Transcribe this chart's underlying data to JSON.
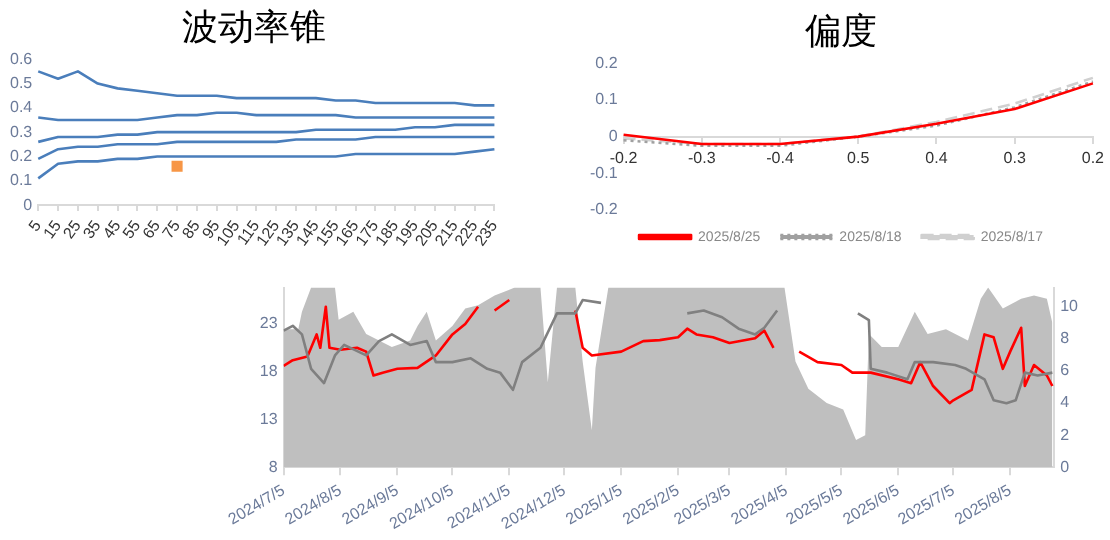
{
  "chart_data": [
    {
      "type": "line",
      "title": "波动率锥",
      "categories": [
        "5",
        "15",
        "25",
        "35",
        "45",
        "55",
        "65",
        "75",
        "85",
        "95",
        "105",
        "115",
        "125",
        "135",
        "145",
        "155",
        "165",
        "175",
        "185",
        "195",
        "205",
        "215",
        "225",
        "235"
      ],
      "series": [
        {
          "color": "#4a7ebb",
          "values": [
            0.55,
            0.52,
            0.55,
            0.5,
            0.48,
            0.47,
            0.46,
            0.45,
            0.45,
            0.45,
            0.44,
            0.44,
            0.44,
            0.44,
            0.44,
            0.43,
            0.43,
            0.42,
            0.42,
            0.42,
            0.42,
            0.42,
            0.41,
            0.41
          ]
        },
        {
          "color": "#4a7ebb",
          "values": [
            0.36,
            0.35,
            0.35,
            0.35,
            0.35,
            0.35,
            0.36,
            0.37,
            0.37,
            0.38,
            0.38,
            0.37,
            0.37,
            0.37,
            0.37,
            0.37,
            0.36,
            0.36,
            0.36,
            0.36,
            0.36,
            0.36,
            0.36,
            0.36
          ]
        },
        {
          "color": "#4a7ebb",
          "values": [
            0.26,
            0.28,
            0.28,
            0.28,
            0.29,
            0.29,
            0.3,
            0.3,
            0.3,
            0.3,
            0.3,
            0.3,
            0.3,
            0.3,
            0.31,
            0.31,
            0.31,
            0.31,
            0.31,
            0.32,
            0.32,
            0.33,
            0.33,
            0.33
          ]
        },
        {
          "color": "#4a7ebb",
          "values": [
            0.19,
            0.23,
            0.24,
            0.24,
            0.25,
            0.25,
            0.25,
            0.26,
            0.26,
            0.26,
            0.26,
            0.26,
            0.26,
            0.27,
            0.27,
            0.27,
            0.27,
            0.28,
            0.28,
            0.28,
            0.28,
            0.28,
            0.28,
            0.28
          ]
        },
        {
          "color": "#4a7ebb",
          "values": [
            0.11,
            0.17,
            0.18,
            0.18,
            0.19,
            0.19,
            0.2,
            0.2,
            0.2,
            0.2,
            0.2,
            0.2,
            0.2,
            0.2,
            0.2,
            0.2,
            0.21,
            0.21,
            0.21,
            0.21,
            0.21,
            0.21,
            0.22,
            0.23
          ]
        },
        {
          "type": "scatter",
          "marker": "square",
          "color": "#f79646",
          "x": [
            "75"
          ],
          "values": [
            0.16
          ]
        }
      ],
      "ylim": [
        0,
        0.6
      ],
      "yticks": [
        0,
        0.1,
        0.2,
        0.3,
        0.4,
        0.5,
        0.6
      ],
      "legend": false,
      "marker": "none"
    },
    {
      "type": "line",
      "title": "偏度",
      "categories": [
        "-0.2",
        "-0.3",
        "-0.4",
        "0.5",
        "0.4",
        "0.3",
        "0.2"
      ],
      "series": [
        {
          "name": "2025/8/25",
          "color": "#ff0000",
          "line_style": "solid",
          "values": [
            0.005,
            -0.02,
            -0.02,
            0,
            0.035,
            0.075,
            0.145
          ]
        },
        {
          "name": "2025/8/18",
          "color": "#a0a0a0",
          "line_style": "dotted",
          "values": [
            -0.01,
            -0.025,
            -0.025,
            0,
            0.03,
            0.08,
            0.15
          ]
        },
        {
          "name": "2025/8/17",
          "color": "#d0d0d0",
          "line_style": "dashed",
          "values": [
            -0.005,
            -0.02,
            -0.02,
            0,
            0.04,
            0.09,
            0.16
          ]
        }
      ],
      "ylim": [
        -0.2,
        0.2
      ],
      "yticks": [
        -0.2,
        -0.1,
        0,
        0.1,
        0.2
      ],
      "legend": "bottom",
      "marker": "none"
    },
    {
      "type": "line",
      "series": [
        {
          "type": "area",
          "axis": "y2",
          "color": "#bfbfbf",
          "x": [
            "2024-07-05",
            "2024-07-13",
            "2024-07-15",
            "2024-07-20",
            "2024-07-30",
            "2024-08-02",
            "2024-08-04",
            "2024-08-12",
            "2024-08-19",
            "2024-08-26",
            "2024-09-02",
            "2024-09-12",
            "2024-09-16",
            "2024-09-21",
            "2024-09-26",
            "2024-10-05",
            "2024-10-12",
            "2024-10-19",
            "2024-10-28",
            "2024-11-08",
            "2024-11-22",
            "2024-11-26",
            "2024-12-01",
            "2024-12-11",
            "2024-12-15",
            "2024-12-20",
            "2024-12-22",
            "2024-12-29",
            "2025-04-04",
            "2025-04-10",
            "2025-04-17",
            "2025-04-27",
            "2025-05-06",
            "2025-05-13",
            "2025-05-18",
            "2025-05-20",
            "2025-05-27",
            "2025-06-05",
            "2025-06-14",
            "2025-06-21",
            "2025-07-01",
            "2025-07-13",
            "2025-07-20",
            "2025-07-24",
            "2025-08-01",
            "2025-08-11",
            "2025-08-18",
            "2025-08-25",
            "2025-08-28"
          ],
          "values": [
            8.6,
            8.6,
            9.7,
            11.2,
            11.2,
            11.2,
            9.2,
            9.7,
            8.3,
            7.9,
            7.5,
            7.9,
            8.8,
            9.7,
            7.9,
            8.8,
            9.9,
            10.1,
            10.7,
            11.2,
            11.2,
            5.3,
            11.2,
            11.2,
            6.6,
            2.3,
            6.2,
            11.2,
            11.2,
            6.6,
            4.9,
            4.0,
            3.6,
            1.7,
            2.0,
            8.3,
            7.5,
            7.5,
            9.7,
            8.3,
            8.6,
            7.9,
            10.5,
            11.2,
            9.9,
            10.5,
            10.7,
            10.5,
            9.0
          ]
        },
        {
          "color": "#808080",
          "x": [
            "2024-07-05",
            "2024-07-10",
            "2024-07-15",
            "2024-07-20",
            "2024-07-27",
            "2024-08-02",
            "2024-08-07",
            "2024-08-19",
            "2024-08-26",
            "2024-09-02",
            "2024-09-12",
            "2024-09-21",
            "2024-09-26",
            "2024-10-05",
            "2024-10-15",
            "2024-10-24",
            "2024-10-31",
            "2024-11-07",
            "2024-11-12",
            "2024-11-22",
            "2024-12-01",
            "2024-12-11",
            "2024-12-15",
            "2024-12-25",
            "2025-01-03",
            "2025-01-17",
            "2025-01-26",
            "2025-02-05",
            "2025-02-10",
            "2025-02-19",
            "2025-03-01",
            "2025-03-10",
            "2025-03-19",
            "2025-03-24",
            "2025-03-31",
            "2025-04-05",
            "2025-04-22",
            "2025-05-02",
            "2025-05-14",
            "2025-05-20",
            "2025-05-21",
            "2025-05-30",
            "2025-06-10",
            "2025-06-14",
            "2025-06-24",
            "2025-07-06",
            "2025-07-12",
            "2025-07-22",
            "2025-07-27",
            "2025-08-03",
            "2025-08-08",
            "2025-08-13",
            "2025-08-20",
            "2025-08-28"
          ],
          "values": [
            22.3,
            22.8,
            21.9,
            18.3,
            16.8,
            19.7,
            20.8,
            19.7,
            21.2,
            21.9,
            20.8,
            21.2,
            19.0,
            19.0,
            19.4,
            18.3,
            17.9,
            16.1,
            19.0,
            20.5,
            24.1,
            24.1,
            25.5,
            25.2,
            null,
            null,
            null,
            null,
            24.1,
            24.4,
            23.7,
            22.5,
            21.9,
            22.6,
            24.4,
            null,
            null,
            null,
            24.1,
            23.4,
            18.3,
            17.9,
            17.2,
            19.0,
            19.0,
            18.7,
            18.3,
            17.2,
            15.0,
            14.7,
            15.0,
            17.9,
            17.6,
            17.9
          ]
        },
        {
          "color": "#ff0000",
          "x": [
            "2024-07-05",
            "2024-07-10",
            "2024-07-18",
            "2024-07-23",
            "2024-07-25",
            "2024-07-28",
            "2024-07-30",
            "2024-08-05",
            "2024-08-14",
            "2024-08-19",
            "2024-08-23",
            "2024-08-28",
            "2024-09-05",
            "2024-09-16",
            "2024-09-26",
            "2024-10-05",
            "2024-10-12",
            "2024-10-19",
            "2024-10-21",
            "2024-10-28",
            "2024-11-05",
            "2024-11-12",
            "2024-11-22",
            "2024-12-01",
            "2024-12-05",
            "2024-12-11",
            "2024-12-15",
            "2024-12-20",
            "2025-01-05",
            "2025-01-17",
            "2025-01-26",
            "2025-02-05",
            "2025-02-10",
            "2025-02-15",
            "2025-02-24",
            "2025-03-05",
            "2025-03-19",
            "2025-03-24",
            "2025-03-29",
            "2025-04-05",
            "2025-04-08",
            "2025-04-12",
            "2025-04-22",
            "2025-05-05",
            "2025-05-11",
            "2025-05-21",
            "2025-06-05",
            "2025-06-12",
            "2025-06-17",
            "2025-06-24",
            "2025-07-03",
            "2025-07-05",
            "2025-07-15",
            "2025-07-22",
            "2025-07-27",
            "2025-08-01",
            "2025-08-05",
            "2025-08-11",
            "2025-08-13",
            "2025-08-18",
            "2025-08-25",
            "2025-08-28"
          ],
          "values": [
            18.6,
            19.2,
            19.6,
            21.9,
            20.5,
            24.8,
            20.5,
            20.3,
            20.5,
            20.1,
            17.6,
            17.9,
            18.3,
            18.4,
            19.7,
            21.9,
            23.0,
            24.8,
            null,
            24.4,
            25.5,
            null,
            null,
            null,
            null,
            24.4,
            20.5,
            19.7,
            20.1,
            21.2,
            21.3,
            21.6,
            22.5,
            21.9,
            21.6,
            21.0,
            21.5,
            22.3,
            20.5,
            null,
            null,
            20.1,
            19.0,
            18.7,
            17.9,
            17.9,
            17.2,
            16.8,
            19.0,
            16.5,
            14.7,
            15.0,
            16.1,
            21.9,
            21.6,
            18.3,
            20.1,
            22.6,
            16.5,
            18.7,
            17.6,
            16.5
          ]
        }
      ],
      "xlim": [
        "2024-07-05",
        "2025-08-29"
      ],
      "xticks": [
        {
          "value": "2024-07-05",
          "label": "2024/7/5"
        },
        {
          "value": "2024-08-05",
          "label": "2024/8/5"
        },
        {
          "value": "2024-09-05",
          "label": "2024/9/5"
        },
        {
          "value": "2024-10-05",
          "label": "2024/10/5"
        },
        {
          "value": "2024-11-05",
          "label": "2024/11/5"
        },
        {
          "value": "2024-12-05",
          "label": "2024/12/5"
        },
        {
          "value": "2025-01-05",
          "label": "2025/1/5"
        },
        {
          "value": "2025-02-05",
          "label": "2025/2/5"
        },
        {
          "value": "2025-03-05",
          "label": "2025/3/5"
        },
        {
          "value": "2025-04-05",
          "label": "2025/4/5"
        },
        {
          "value": "2025-05-05",
          "label": "2025/5/5"
        },
        {
          "value": "2025-06-05",
          "label": "2025/6/5"
        },
        {
          "value": "2025-07-05",
          "label": "2025/7/5"
        },
        {
          "value": "2025-08-05",
          "label": "2025/8/5"
        }
      ],
      "ylim": [
        8,
        26.8
      ],
      "yticks": [
        8,
        13,
        18,
        23
      ],
      "y2lim": [
        0,
        11.2
      ],
      "y2ticks": [
        0,
        2,
        4,
        6,
        8,
        10
      ],
      "legend": false,
      "marker": "none"
    }
  ]
}
